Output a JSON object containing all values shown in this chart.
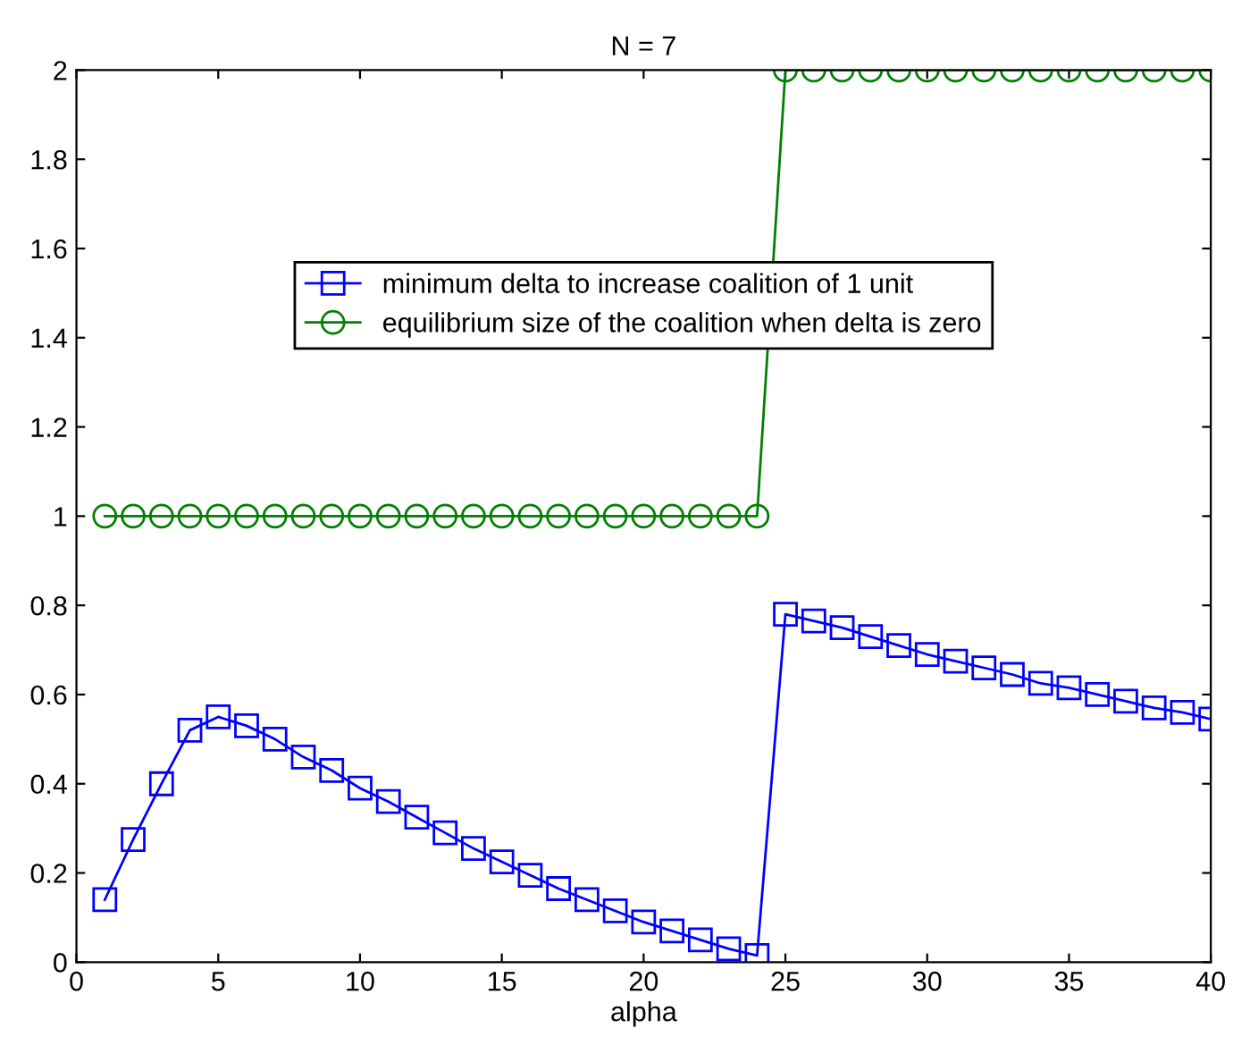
{
  "chart_data": {
    "type": "line",
    "title": "N = 7",
    "xlabel": "alpha",
    "x": [
      1,
      2,
      3,
      4,
      5,
      6,
      7,
      8,
      9,
      10,
      11,
      12,
      13,
      14,
      15,
      16,
      17,
      18,
      19,
      20,
      21,
      22,
      23,
      24,
      25,
      26,
      27,
      28,
      29,
      30,
      31,
      32,
      33,
      34,
      35,
      36,
      37,
      38,
      39,
      40
    ],
    "series": [
      {
        "name": "minimum delta to increase coalition of 1 unit",
        "color": "#0000ff",
        "marker": "square",
        "values": [
          0.14,
          0.275,
          0.4,
          0.52,
          0.55,
          0.53,
          0.5,
          0.46,
          0.43,
          0.39,
          0.36,
          0.325,
          0.29,
          0.255,
          0.225,
          0.195,
          0.165,
          0.14,
          0.115,
          0.09,
          0.07,
          0.05,
          0.03,
          0.015,
          0.78,
          0.765,
          0.75,
          0.73,
          0.71,
          0.69,
          0.675,
          0.66,
          0.645,
          0.625,
          0.615,
          0.6,
          0.585,
          0.57,
          0.56,
          0.545
        ]
      },
      {
        "name": "equilibrium size of the coalition when delta is zero",
        "color": "#008000",
        "marker": "circle",
        "values": [
          1,
          1,
          1,
          1,
          1,
          1,
          1,
          1,
          1,
          1,
          1,
          1,
          1,
          1,
          1,
          1,
          1,
          1,
          1,
          1,
          1,
          1,
          1,
          1,
          2,
          2,
          2,
          2,
          2,
          2,
          2,
          2,
          2,
          2,
          2,
          2,
          2,
          2,
          2,
          2
        ]
      }
    ],
    "xlim": [
      0,
      40
    ],
    "xticks": [
      0,
      5,
      10,
      15,
      20,
      25,
      30,
      35,
      40
    ],
    "ylim": [
      0,
      2
    ],
    "yticks": [
      0,
      0.2,
      0.4,
      0.6,
      0.8,
      1,
      1.2,
      1.4,
      1.6,
      1.8,
      2
    ],
    "line_style": "solid",
    "legend": "top",
    "grid": false
  }
}
